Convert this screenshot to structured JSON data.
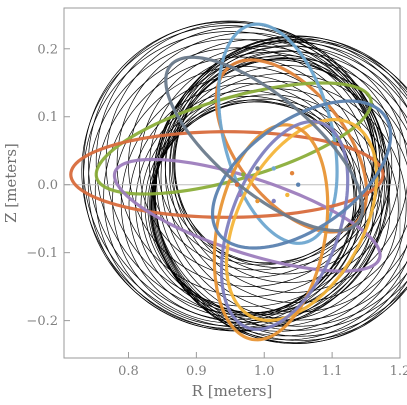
{
  "chart_data": {
    "type": "line",
    "title": "",
    "xlabel": "R [meters]",
    "ylabel": "Z [meters]",
    "xlim": [
      0.705,
      1.2
    ],
    "ylim": [
      -0.255,
      0.26
    ],
    "x_ticks": [
      0.8,
      0.9,
      1.0,
      1.1,
      1.2
    ],
    "x_tick_labels": [
      "0.8",
      "0.9",
      "1.0",
      "1.1",
      "1.2"
    ],
    "y_ticks": [
      -0.2,
      -0.1,
      0.0,
      0.1,
      0.2
    ],
    "y_tick_labels": [
      "−0.2",
      "−0.1",
      "0.0",
      "0.1",
      "0.2"
    ],
    "grid": false,
    "zero_line": "Z = 0",
    "magnetic_axis": {
      "R": 1.0,
      "Z": 0.0
    },
    "black_surfaces": {
      "color": "#000000",
      "count": 44,
      "major_radius_range": [
        0.955,
        1.05
      ],
      "minor_radius_range": [
        0.155,
        0.22
      ],
      "elongation_range": [
        0.94,
        1.06
      ]
    },
    "series": [
      {
        "color": "#e2843a",
        "center_R": 1.04,
        "center_Z": 0.057,
        "a": 0.148,
        "b": 0.08,
        "tilt_deg": -52,
        "dot": {
          "R": 1.041,
          "Z": 0.017
        }
      },
      {
        "color": "#8bae3a",
        "center_R": 0.955,
        "center_Z": 0.068,
        "a": 0.21,
        "b": 0.06,
        "tilt_deg": 16,
        "dot": {
          "R": 0.969,
          "Z": 0.015
        }
      },
      {
        "color": "#6ea7d0",
        "center_R": 1.02,
        "center_Z": 0.075,
        "a": 0.165,
        "b": 0.08,
        "tilt_deg": -76,
        "dot": {
          "R": 1.014,
          "Z": 0.024
        }
      },
      {
        "color": "#d86b3c",
        "center_R": 0.945,
        "center_Z": 0.015,
        "a": 0.23,
        "b": 0.063,
        "tilt_deg": 0,
        "dot": {
          "R": 0.96,
          "Z": 0.0
        }
      },
      {
        "color": "#9d7dbd",
        "center_R": 0.975,
        "center_Z": -0.045,
        "a": 0.205,
        "b": 0.055,
        "tilt_deg": -18,
        "dot": {
          "R": 0.964,
          "Z": -0.015
        }
      },
      {
        "color": "#f4b53a",
        "center_R": 1.055,
        "center_Z": -0.052,
        "a": 0.16,
        "b": 0.092,
        "tilt_deg": 62,
        "dot": {
          "R": 1.034,
          "Z": -0.015
        }
      },
      {
        "color": "#e89535",
        "center_R": 1.01,
        "center_Z": -0.07,
        "a": 0.16,
        "b": 0.08,
        "tilt_deg": 80,
        "dot": {
          "R": 0.99,
          "Z": -0.024
        }
      },
      {
        "color": "#7f7fbf",
        "center_R": 1.03,
        "center_Z": -0.06,
        "a": 0.16,
        "b": 0.08,
        "tilt_deg": 70,
        "dot": {
          "R": 1.014,
          "Z": -0.024
        }
      },
      {
        "color": "#5b82b0",
        "center_R": 1.055,
        "center_Z": 0.015,
        "a": 0.15,
        "b": 0.08,
        "tilt_deg": 35,
        "dot": {
          "R": 1.05,
          "Z": 0.0
        }
      },
      {
        "color": "#6b7b8c",
        "center_R": 1.0,
        "center_Z": 0.06,
        "a": 0.18,
        "b": 0.07,
        "tilt_deg": -40,
        "dot": {
          "R": 0.99,
          "Z": 0.024
        }
      }
    ]
  }
}
